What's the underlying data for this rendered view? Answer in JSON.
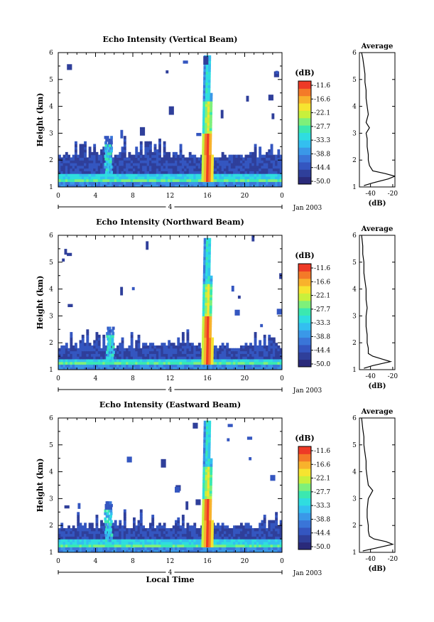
{
  "chart_data": [
    {
      "type": "heatmap",
      "title": "Echo Intensity (Vertical Beam)",
      "ylabel": "Height (km)",
      "ylim": [
        1,
        6
      ],
      "y_ticks": [
        "1",
        "2",
        "3",
        "4",
        "5",
        "6"
      ],
      "xlim": [
        0,
        24
      ],
      "x_ticks": [
        "0",
        "4",
        "8",
        "12",
        "16",
        "20",
        "0"
      ],
      "date_marker": "4",
      "date_label": "Jan 2003",
      "colorbar": {
        "unit": "(dB)",
        "levels": [
          "-11.6",
          "-16.6",
          "-22.1",
          "-27.7",
          "-33.3",
          "-38.8",
          "-44.4",
          "-50.0"
        ]
      },
      "features": {
        "surface_layer_top_km": 1.5,
        "boundary_layer_top_km": 2.1,
        "tower_hour": 15.9,
        "tower_top_km": 5.8,
        "plume_hour": 5.3,
        "plume_top_km": 2.9
      },
      "average_profile": {
        "title": "Average",
        "xlabel": "(dB)",
        "x_ticks": [
          "-40",
          "-20"
        ],
        "xlim": [
          -50,
          -18
        ],
        "height_km": [
          1.05,
          1.15,
          1.3,
          1.4,
          1.5,
          1.6,
          1.8,
          2.0,
          2.2,
          2.5,
          2.8,
          3.0,
          3.2,
          3.4,
          3.7,
          4.0,
          4.3,
          4.6,
          4.9,
          5.2,
          5.5,
          5.8,
          6.0
        ],
        "echo_db": [
          -46,
          -38,
          -24,
          -18,
          -27,
          -38,
          -41,
          -42,
          -42,
          -43,
          -43,
          -44,
          -41,
          -44,
          -42,
          -43,
          -44,
          -44,
          -45,
          -45,
          -46,
          -47,
          -48
        ]
      }
    },
    {
      "type": "heatmap",
      "title": "Echo Intensity (Northward Beam)",
      "ylabel": "Height (km)",
      "ylim": [
        1,
        6
      ],
      "y_ticks": [
        "1",
        "2",
        "3",
        "4",
        "5",
        "6"
      ],
      "xlim": [
        0,
        24
      ],
      "x_ticks": [
        "0",
        "4",
        "8",
        "12",
        "16",
        "20",
        "0"
      ],
      "date_marker": "4",
      "date_label": "Jan 2003",
      "colorbar": {
        "unit": "(dB)",
        "levels": [
          "-11.6",
          "-16.6",
          "-22.1",
          "-27.7",
          "-33.3",
          "-38.8",
          "-44.4",
          "-50.0"
        ]
      },
      "features": {
        "surface_layer_top_km": 1.4,
        "boundary_layer_top_km": 1.8,
        "tower_hour": 15.9,
        "tower_top_km": 5.8,
        "plume_hour": 5.5,
        "plume_top_km": 2.6
      },
      "average_profile": {
        "title": "Average",
        "xlabel": "(dB)",
        "x_ticks": [
          "-40",
          "-20"
        ],
        "xlim": [
          -50,
          -18
        ],
        "height_km": [
          1.05,
          1.15,
          1.3,
          1.4,
          1.5,
          1.6,
          1.8,
          2.0,
          2.3,
          2.6,
          3.0,
          3.3,
          3.6,
          4.0,
          4.3,
          4.6,
          5.0,
          5.3,
          5.6,
          6.0
        ],
        "echo_db": [
          -46,
          -38,
          -22,
          -30,
          -38,
          -42,
          -42,
          -43,
          -43,
          -44,
          -44,
          -43,
          -44,
          -44,
          -45,
          -46,
          -46,
          -47,
          -47,
          -48
        ]
      }
    },
    {
      "type": "heatmap",
      "title": "Echo Intensity (Eastward Beam)",
      "ylabel": "Height (km)",
      "ylim": [
        1,
        6
      ],
      "y_ticks": [
        "1",
        "2",
        "3",
        "4",
        "5",
        "6"
      ],
      "xlim": [
        0,
        24
      ],
      "x_ticks": [
        "0",
        "4",
        "8",
        "12",
        "16",
        "20",
        "0"
      ],
      "xlabel": "Local Time",
      "date_marker": "4",
      "date_label": "Jan 2003",
      "colorbar": {
        "unit": "(dB)",
        "levels": [
          "-11.6",
          "-16.6",
          "-22.1",
          "-27.7",
          "-33.3",
          "-38.8",
          "-44.4",
          "-50.0"
        ]
      },
      "features": {
        "surface_layer_top_km": 1.5,
        "boundary_layer_top_km": 1.9,
        "tower_hour": 15.9,
        "tower_top_km": 5.8,
        "plume_hour": 5.3,
        "plume_top_km": 2.9
      },
      "average_profile": {
        "title": "Average",
        "xlabel": "(dB)",
        "x_ticks": [
          "-40",
          "-20"
        ],
        "xlim": [
          -50,
          -18
        ],
        "height_km": [
          1.05,
          1.15,
          1.3,
          1.4,
          1.5,
          1.6,
          1.8,
          2.0,
          2.3,
          2.6,
          3.0,
          3.3,
          3.5,
          3.8,
          4.1,
          4.4,
          4.7,
          5.0,
          5.3,
          5.6,
          6.0
        ],
        "echo_db": [
          -47,
          -36,
          -20,
          -26,
          -37,
          -41,
          -42,
          -42,
          -43,
          -43,
          -42,
          -38,
          -42,
          -43,
          -44,
          -44,
          -45,
          -46,
          -46,
          -47,
          -48
        ]
      }
    }
  ],
  "colormap": [
    "#2a2a7a",
    "#2f3f9a",
    "#3456c0",
    "#3a75d8",
    "#3a98e8",
    "#33bff0",
    "#2fdde0",
    "#3be8b0",
    "#7ef07a",
    "#c8f03c",
    "#f6e430",
    "#f8b22c",
    "#f47a28",
    "#ee3a26"
  ]
}
